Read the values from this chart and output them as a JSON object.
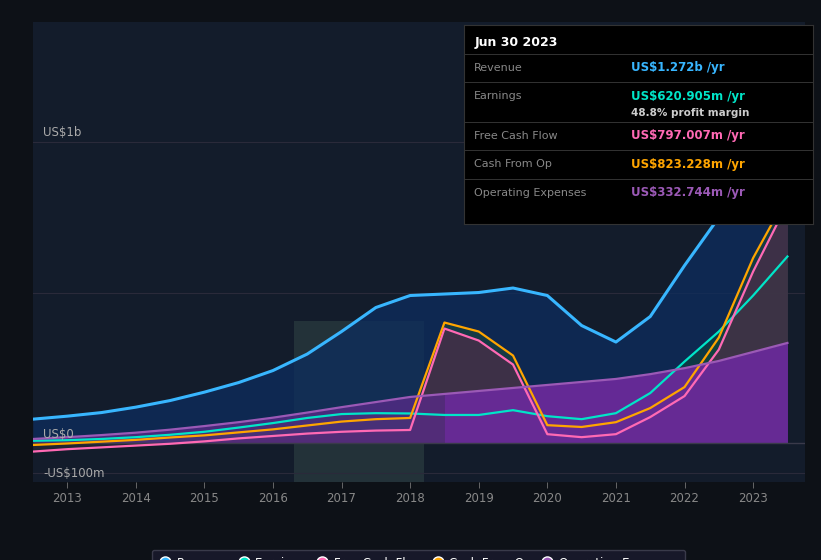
{
  "bg_color": "#0d1117",
  "plot_bg_color": "#131c2b",
  "y_label_top": "US$1b",
  "y_label_zero": "US$0",
  "y_label_neg": "-US$100m",
  "revenue_color": "#38b6ff",
  "earnings_color": "#00e5c8",
  "fcf_color": "#ff69b4",
  "cashfromop_color": "#ffa500",
  "opex_color": "#9b59b6",
  "tooltip_date": "Jun 30 2023",
  "tooltip_revenue": "US$1.272b /yr",
  "tooltip_earnings": "US$620.905m /yr",
  "tooltip_margin": "48.8% profit margin",
  "tooltip_fcf": "US$797.007m /yr",
  "tooltip_cashfromop": "US$823.228m /yr",
  "tooltip_opex": "US$332.744m /yr",
  "xlim_start": 2012.5,
  "xlim_end": 2023.75,
  "ylim_min": -130,
  "ylim_max": 1400
}
